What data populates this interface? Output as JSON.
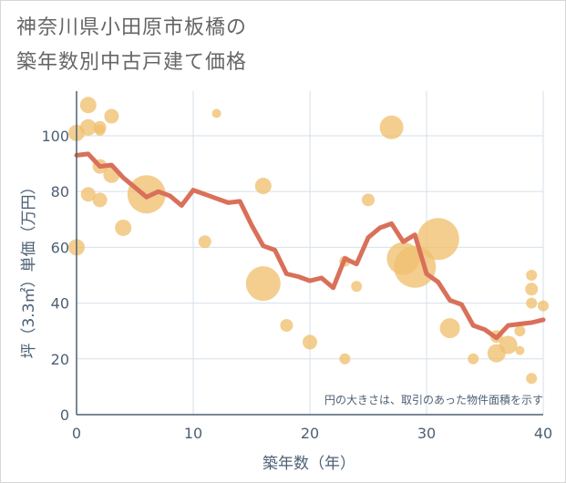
{
  "title_lines": [
    "神奈川県小田原市板橋の",
    "築年数別中古戸建て価格"
  ],
  "chart_data": {
    "type": "scatter",
    "title": "神奈川県小田原市板橋の築年数別中古戸建て価格",
    "xlabel": "築年数（年）",
    "ylabel": "坪（3.3㎡）単価（万円）",
    "xlim": [
      0,
      40
    ],
    "ylim": [
      0,
      116
    ],
    "xticks": [
      0,
      10,
      20,
      30,
      40
    ],
    "yticks": [
      0,
      20,
      40,
      60,
      80,
      100
    ],
    "note": "円の大きさは、取引のあった物件面積を示す",
    "colors": {
      "bubble": "#f0c070",
      "line": "#d9705a",
      "grid": "#d6dfe8",
      "axis": "#4d6074"
    },
    "bubbles": [
      {
        "x": 0,
        "y": 101,
        "size": 9
      },
      {
        "x": 0,
        "y": 60,
        "size": 9
      },
      {
        "x": 1,
        "y": 111,
        "size": 9
      },
      {
        "x": 1,
        "y": 103,
        "size": 9
      },
      {
        "x": 1,
        "y": 79,
        "size": 8
      },
      {
        "x": 2,
        "y": 103,
        "size": 7
      },
      {
        "x": 2,
        "y": 102,
        "size": 6
      },
      {
        "x": 2,
        "y": 89,
        "size": 8
      },
      {
        "x": 2,
        "y": 77,
        "size": 8
      },
      {
        "x": 3,
        "y": 107,
        "size": 8
      },
      {
        "x": 3,
        "y": 86,
        "size": 9
      },
      {
        "x": 4,
        "y": 67,
        "size": 9
      },
      {
        "x": 6,
        "y": 79,
        "size": 21
      },
      {
        "x": 11,
        "y": 62,
        "size": 7
      },
      {
        "x": 12,
        "y": 108,
        "size": 5
      },
      {
        "x": 16,
        "y": 82,
        "size": 9
      },
      {
        "x": 16,
        "y": 47,
        "size": 19
      },
      {
        "x": 18,
        "y": 32,
        "size": 7
      },
      {
        "x": 20,
        "y": 26,
        "size": 8
      },
      {
        "x": 23,
        "y": 20,
        "size": 6
      },
      {
        "x": 23,
        "y": 55,
        "size": 6
      },
      {
        "x": 24,
        "y": 46,
        "size": 6
      },
      {
        "x": 25,
        "y": 77,
        "size": 7
      },
      {
        "x": 27,
        "y": 103,
        "size": 13
      },
      {
        "x": 28,
        "y": 56,
        "size": 18
      },
      {
        "x": 29,
        "y": 53,
        "size": 23
      },
      {
        "x": 31,
        "y": 63,
        "size": 23
      },
      {
        "x": 32,
        "y": 31,
        "size": 11
      },
      {
        "x": 34,
        "y": 20,
        "size": 6
      },
      {
        "x": 36,
        "y": 22,
        "size": 10
      },
      {
        "x": 36,
        "y": 28,
        "size": 7
      },
      {
        "x": 37,
        "y": 25,
        "size": 10
      },
      {
        "x": 38,
        "y": 23,
        "size": 5
      },
      {
        "x": 38,
        "y": 30,
        "size": 6
      },
      {
        "x": 39,
        "y": 50,
        "size": 6
      },
      {
        "x": 39,
        "y": 45,
        "size": 7
      },
      {
        "x": 39,
        "y": 40,
        "size": 6
      },
      {
        "x": 39,
        "y": 13,
        "size": 6
      },
      {
        "x": 40,
        "y": 39,
        "size": 6
      }
    ],
    "trend": [
      {
        "x": 0,
        "y": 93
      },
      {
        "x": 1,
        "y": 93.5
      },
      {
        "x": 2,
        "y": 89
      },
      {
        "x": 3,
        "y": 89.5
      },
      {
        "x": 4,
        "y": 85
      },
      {
        "x": 5,
        "y": 81.5
      },
      {
        "x": 6,
        "y": 78
      },
      {
        "x": 7,
        "y": 80
      },
      {
        "x": 8,
        "y": 78.5
      },
      {
        "x": 9,
        "y": 75
      },
      {
        "x": 10,
        "y": 80.5
      },
      {
        "x": 11,
        "y": 79
      },
      {
        "x": 12,
        "y": 77.5
      },
      {
        "x": 13,
        "y": 76
      },
      {
        "x": 14,
        "y": 76.5
      },
      {
        "x": 15,
        "y": 68
      },
      {
        "x": 16,
        "y": 60.5
      },
      {
        "x": 17,
        "y": 59
      },
      {
        "x": 18,
        "y": 50.5
      },
      {
        "x": 19,
        "y": 49.5
      },
      {
        "x": 20,
        "y": 48
      },
      {
        "x": 21,
        "y": 49
      },
      {
        "x": 22,
        "y": 45.5
      },
      {
        "x": 23,
        "y": 56
      },
      {
        "x": 24,
        "y": 54
      },
      {
        "x": 25,
        "y": 63.5
      },
      {
        "x": 26,
        "y": 67
      },
      {
        "x": 27,
        "y": 68.5
      },
      {
        "x": 28,
        "y": 62
      },
      {
        "x": 29,
        "y": 64.5
      },
      {
        "x": 30,
        "y": 50.5
      },
      {
        "x": 31,
        "y": 47.5
      },
      {
        "x": 32,
        "y": 41
      },
      {
        "x": 33,
        "y": 39.5
      },
      {
        "x": 34,
        "y": 32
      },
      {
        "x": 35,
        "y": 30.5
      },
      {
        "x": 36,
        "y": 27.5
      },
      {
        "x": 37,
        "y": 32
      },
      {
        "x": 38,
        "y": 32.5
      },
      {
        "x": 39,
        "y": 33
      },
      {
        "x": 40,
        "y": 34
      }
    ]
  }
}
